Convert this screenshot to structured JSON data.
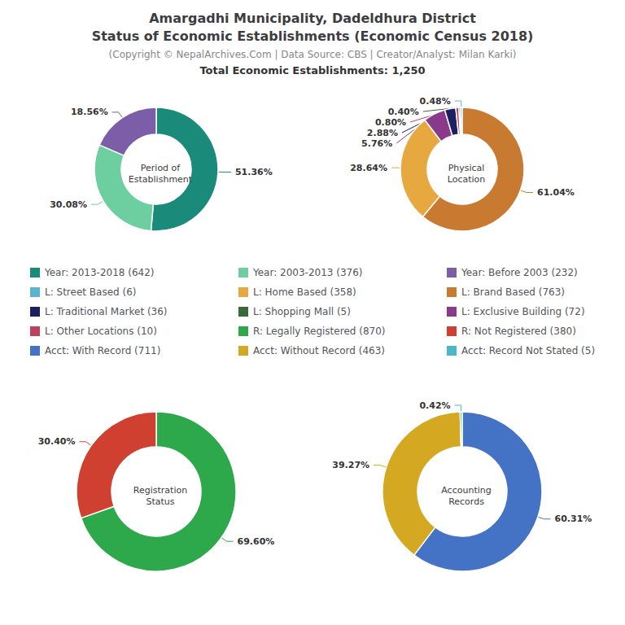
{
  "chart_data": {
    "type": "pie",
    "title": "Amargadhi Municipality, Dadeldhura District\nStatus of Economic Establishments (Economic Census 2018)",
    "subtitle": "(Copyright © NepalArchives.Com | Data Source: CBS | Creator/Analyst: Milan Karki)",
    "annotations": [
      "Total Economic Establishments: 1,250"
    ],
    "legend": "center",
    "legend_entries": [
      "Year: 2013-2018 (642)",
      "Year: 2003-2013 (376)",
      "Year: Before 2003 (232)",
      "L: Street Based (6)",
      "L: Home Based (358)",
      "L: Brand Based (763)",
      "L: Traditional Market (36)",
      "L: Shopping Mall (5)",
      "L: Exclusive Building (72)",
      "L: Other Locations (10)",
      "R: Legally Registered (870)",
      "R: Not Registered (380)",
      "Acct: With Record (711)",
      "Acct: Without Record (463)",
      "Acct: Record Not Stated (5)"
    ],
    "charts": [
      {
        "type": "pie",
        "title": "Period of\nEstablishment",
        "categories": [
          "Year: 2013-2018 (642)",
          "Year: 2003-2013 (376)",
          "Year: Before 2003 (232)"
        ],
        "values": [
          51.36,
          30.08,
          18.56
        ],
        "value_labels": [
          "51.36%",
          "30.08%",
          "18.56%"
        ],
        "colors": [
          "#1a8a7a",
          "#6dcea0",
          "#7b5ea7"
        ],
        "data_labels": true
      },
      {
        "type": "pie",
        "title": "Physical\nLocation",
        "categories": [
          "L: Brand Based (763)",
          "L: Home Based (358)",
          "L: Exclusive Building (72)",
          "L: Traditional Market (36)",
          "L: Other Locations (10)",
          "L: Shopping Mall (5)",
          "L: Street Based (6)"
        ],
        "values": [
          61.04,
          28.64,
          5.76,
          2.88,
          0.8,
          0.4,
          0.48
        ],
        "value_labels": [
          "61.04%",
          "28.64%",
          "5.76%",
          "2.88%",
          "0.80%",
          "0.40%",
          "0.48%"
        ],
        "colors": [
          "#c87a30",
          "#e8a840",
          "#8b3a8b",
          "#1a2060",
          "#c04060",
          "#3a6a3a",
          "#5ab4d0"
        ],
        "data_labels": true
      },
      {
        "type": "pie",
        "title": "Registration\nStatus",
        "categories": [
          "R: Legally Registered (870)",
          "R: Not Registered (380)"
        ],
        "values": [
          69.6,
          30.4
        ],
        "value_labels": [
          "69.60%",
          "30.40%"
        ],
        "colors": [
          "#2da84a",
          "#d04030"
        ],
        "data_labels": true
      },
      {
        "type": "pie",
        "title": "Accounting\nRecords",
        "categories": [
          "Acct: With Record (711)",
          "Acct: Without Record (463)",
          "Acct: Record Not Stated (5)"
        ],
        "values": [
          60.31,
          39.27,
          0.42
        ],
        "value_labels": [
          "60.31%",
          "39.27%",
          "0.42%"
        ],
        "colors": [
          "#4472c4",
          "#d4a820",
          "#4ab8c8"
        ],
        "data_labels": true
      }
    ]
  }
}
